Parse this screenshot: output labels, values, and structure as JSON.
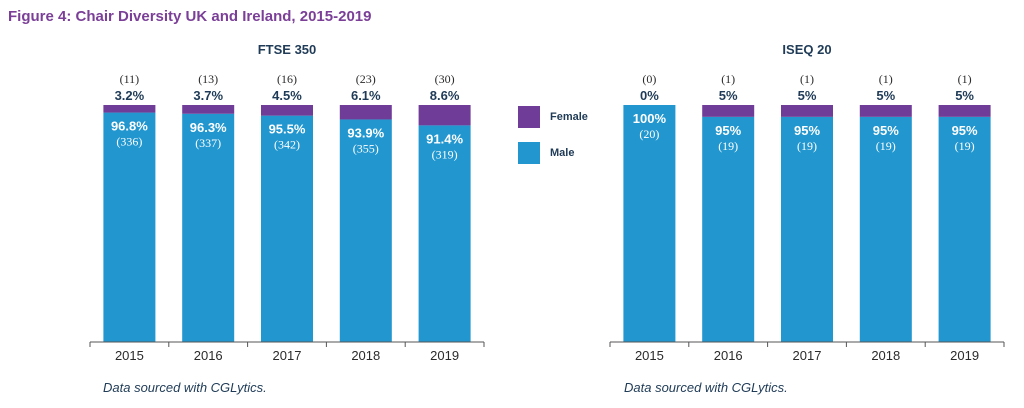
{
  "figure_title": "Figure 4: Chair Diversity UK and Ireland, 2015-2019",
  "colors": {
    "female": "#6f3d97",
    "male": "#2196cf"
  },
  "legend": [
    {
      "label": "Female",
      "color": "#6f3d97"
    },
    {
      "label": "Male",
      "color": "#2196cf"
    }
  ],
  "sources": [
    "Data sourced with CGLytics.",
    "Data sourced with CGLytics."
  ],
  "chart_data": [
    {
      "type": "bar",
      "stacked": true,
      "title": "FTSE 350",
      "categories": [
        "2015",
        "2016",
        "2017",
        "2018",
        "2019"
      ],
      "ylim": [
        0,
        100
      ],
      "series": [
        {
          "name": "Male",
          "values": [
            96.8,
            96.3,
            95.5,
            93.9,
            91.4
          ],
          "labels": [
            "96.8%",
            "96.3%",
            "95.5%",
            "93.9%",
            "91.4%"
          ],
          "counts": [
            "(336)",
            "(337)",
            "(342)",
            "(355)",
            "(319)"
          ]
        },
        {
          "name": "Female",
          "values": [
            3.2,
            3.7,
            4.5,
            6.1,
            8.6
          ],
          "labels": [
            "3.2%",
            "3.7%",
            "4.5%",
            "6.1%",
            "8.6%"
          ],
          "counts": [
            "(11)",
            "(13)",
            "(16)",
            "(23)",
            "(30)"
          ]
        }
      ]
    },
    {
      "type": "bar",
      "stacked": true,
      "title": "ISEQ 20",
      "categories": [
        "2015",
        "2016",
        "2017",
        "2018",
        "2019"
      ],
      "ylim": [
        0,
        100
      ],
      "series": [
        {
          "name": "Male",
          "values": [
            100,
            95,
            95,
            95,
            95
          ],
          "labels": [
            "100%",
            "95%",
            "95%",
            "95%",
            "95%"
          ],
          "counts": [
            "(20)",
            "(19)",
            "(19)",
            "(19)",
            "(19)"
          ]
        },
        {
          "name": "Female",
          "values": [
            0,
            5,
            5,
            5,
            5
          ],
          "labels": [
            "0%",
            "5%",
            "5%",
            "5%",
            "5%"
          ],
          "counts": [
            "(0)",
            "(1)",
            "(1)",
            "(1)",
            "(1)"
          ]
        }
      ]
    }
  ]
}
